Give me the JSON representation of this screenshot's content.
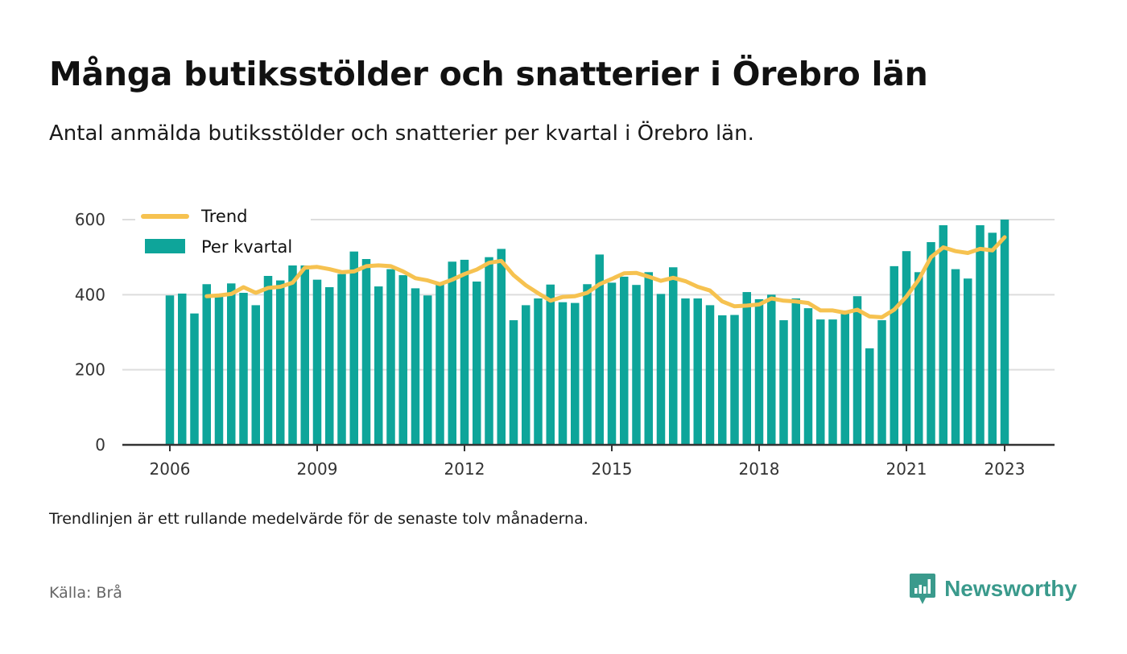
{
  "title": "Många butiksstölder och snatterier i Örebro län",
  "subtitle": "Antal anmälda butiksstölder och snatterier per kvartal i Örebro län.",
  "footnote": "Trendlinjen är ett rullande medelvärde för de senaste tolv månaderna.",
  "source": "Källa: Brå",
  "brand": {
    "name": "Newsworthy",
    "icon": "newsworthy-logo-icon"
  },
  "colors": {
    "bars": "#0ea59a",
    "trend": "#f6c250",
    "grid": "#dddddd",
    "axis": "#333333"
  },
  "chart_data": {
    "type": "bar",
    "x_start": "2006 Q1",
    "frequency": "quarterly",
    "xticks": [
      "2006",
      "2009",
      "2012",
      "2015",
      "2018",
      "2021",
      "2023"
    ],
    "yticks": [
      "0",
      "200",
      "400",
      "600"
    ],
    "ylim": [
      0,
      600
    ],
    "grid": true,
    "legend_position": "top-left",
    "series": [
      {
        "name": "Per kvartal",
        "type": "bar",
        "values": [
          398,
          403,
          350,
          428,
          397,
          430,
          405,
          372,
          450,
          438,
          488,
          510,
          440,
          420,
          455,
          515,
          495,
          422,
          468,
          452,
          417,
          398,
          430,
          488,
          493,
          435,
          500,
          522,
          332,
          372,
          390,
          427,
          380,
          378,
          428,
          507,
          432,
          448,
          426,
          460,
          402,
          473,
          390,
          390,
          372,
          345,
          346,
          407,
          388,
          400,
          332,
          390,
          364,
          334,
          334,
          358,
          396,
          257,
          332,
          476,
          516,
          460,
          540,
          585,
          468,
          443,
          585,
          565,
          600
        ]
      },
      {
        "name": "Trend",
        "type": "line",
        "values": [
          null,
          null,
          null,
          396,
          398,
          402,
          420,
          405,
          418,
          421,
          432,
          472,
          474,
          468,
          460,
          462,
          476,
          478,
          476,
          462,
          444,
          438,
          428,
          440,
          455,
          467,
          485,
          490,
          452,
          425,
          404,
          384,
          394,
          396,
          405,
          428,
          442,
          457,
          458,
          448,
          437,
          445,
          436,
          421,
          411,
          382,
          369,
          371,
          374,
          390,
          384,
          382,
          378,
          358,
          358,
          352,
          360,
          342,
          340,
          360,
          395,
          440,
          500,
          526,
          516,
          511,
          522,
          518,
          553
        ]
      }
    ]
  }
}
